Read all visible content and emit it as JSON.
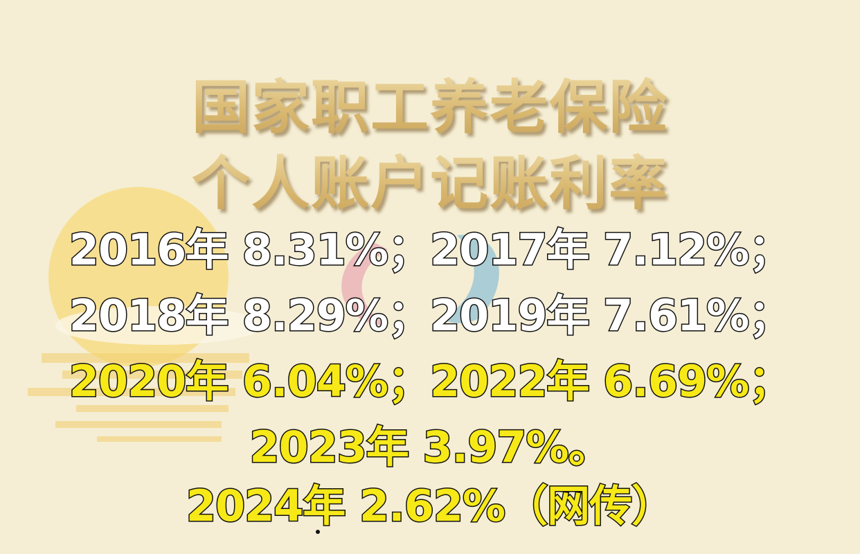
{
  "title": {
    "line1": "国家职工养老保险",
    "line2": "个人账户记账利率"
  },
  "rates": [
    {
      "text": "2016年 8.31%；2017年 7.12%；",
      "color": "white"
    },
    {
      "text": "2018年 8.29%；2019年 7.61%；",
      "color": "white"
    },
    {
      "text": "2020年 6.04%；2022年 6.69%；",
      "color": "yellow"
    },
    {
      "text": "2023年 3.97%。",
      "color": "yellow"
    },
    {
      "text": "2024年 2.62%（网传）",
      "color": "yellow"
    }
  ],
  "colors": {
    "background": "#f5eed4",
    "title_gold": "#d9b870",
    "highlight_yellow": "#f7e917",
    "outline": "#111111"
  }
}
